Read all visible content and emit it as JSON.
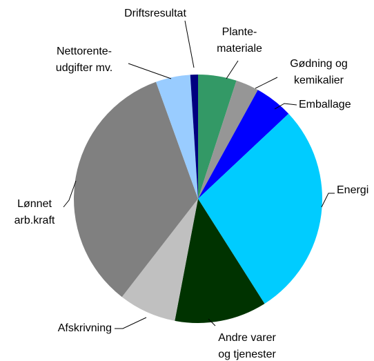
{
  "chart_data": {
    "type": "pie",
    "categories": [
      "Plante-\nmateriale",
      "Gødning og\nkemikalier",
      "Emballage",
      "Energi",
      "Andre varer\nog tjenester",
      "Afskrivning",
      "Lønnet\narb.kraft",
      "Nettorente-\nudgifter mv.",
      "Driftsresultat"
    ],
    "values": [
      5,
      3,
      5,
      28,
      12,
      7.5,
      34,
      4.5,
      1
    ],
    "colors": [
      "#339966",
      "#969696",
      "#0000ff",
      "#00ccff",
      "#003300",
      "#c0c0c0",
      "#808080",
      "#99ccff",
      "#000080"
    ]
  }
}
